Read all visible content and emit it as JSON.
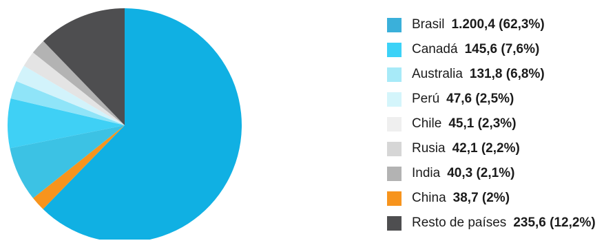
{
  "chart_data": {
    "type": "pie",
    "title": "",
    "start_angle_deg": 0,
    "direction": "clockwise",
    "slices": [
      {
        "label": "Brasil",
        "value": 1200.4,
        "value_text": "1.200,4 (62,3%)",
        "percent": 62.3,
        "color": "#10b0e3",
        "legend_color": "#3ab0da"
      },
      {
        "label": "China",
        "value": 38.7,
        "value_text": "38,7 (2%)",
        "percent": 2.0,
        "color": "#f7941d",
        "legend_color": "#f7941d"
      },
      {
        "label": "Canadá",
        "value": 145.6,
        "value_text": "145,6 (7,6%)",
        "percent": 7.6,
        "color": "#3cc2e4",
        "legend_color": "#3cd2f7"
      },
      {
        "label": "Australia",
        "value": 131.8,
        "value_text": "131,8 (6,8%)",
        "percent": 6.8,
        "color": "#3fd0f5",
        "legend_color": "#a7eaf8"
      },
      {
        "label": "Perú",
        "value": 47.6,
        "value_text": "47,6 (2,5%)",
        "percent": 2.5,
        "color": "#8fe4f8",
        "legend_color": "#d4f5fb"
      },
      {
        "label": "Chile",
        "value": 45.1,
        "value_text": "45,1 (2,3%)",
        "percent": 2.3,
        "color": "#d2f3fb",
        "legend_color": "#efefef"
      },
      {
        "label": "Rusia",
        "value": 42.1,
        "value_text": "42,1 (2,2%)",
        "percent": 2.2,
        "color": "#e4e4e4",
        "legend_color": "#d6d6d6"
      },
      {
        "label": "India",
        "value": 40.3,
        "value_text": "40,3 (2,1%)",
        "percent": 2.1,
        "color": "#b3b3b3",
        "legend_color": "#b3b3b3"
      },
      {
        "label": "Resto de países",
        "value": 235.6,
        "value_text": "235,6 (12,2%)",
        "percent": 12.2,
        "color": "#4e4e50",
        "legend_color": "#4e4e50"
      }
    ],
    "legend_order": [
      "Brasil",
      "Canadá",
      "Australia",
      "Perú",
      "Chile",
      "Rusia",
      "India",
      "China",
      "Resto de países"
    ],
    "legend_position": "right"
  }
}
